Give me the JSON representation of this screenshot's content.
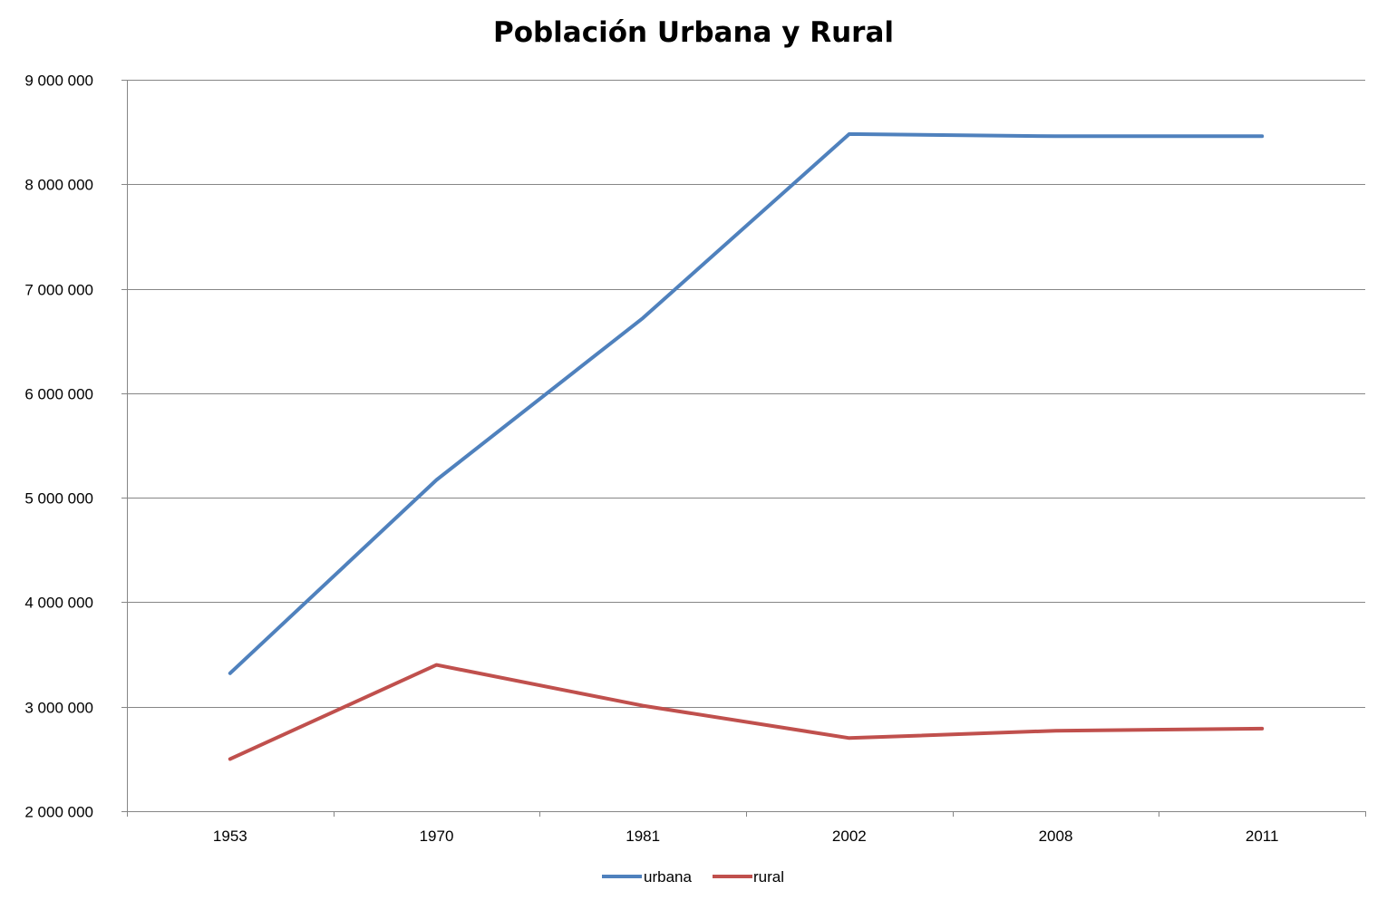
{
  "chart_data": {
    "type": "line",
    "title": "Población Urbana y Rural",
    "xlabel": "",
    "ylabel": "",
    "categories": [
      "1953",
      "1970",
      "1981",
      "2002",
      "2008",
      "2011"
    ],
    "ylim": [
      2000000,
      9000000
    ],
    "yticks": [
      2000000,
      3000000,
      4000000,
      5000000,
      6000000,
      7000000,
      8000000,
      9000000
    ],
    "ytick_labels": [
      "2 000 000",
      "3 000 000",
      "4 000 000",
      "5 000 000",
      "6 000 000",
      "7 000 000",
      "8 000 000",
      "9 000 000"
    ],
    "grid": true,
    "legend_position": "bottom",
    "series": [
      {
        "name": "urbana",
        "color": "#4F81BD",
        "values": [
          3320000,
          5170000,
          6720000,
          8480000,
          8460000,
          8460000
        ]
      },
      {
        "name": "rural",
        "color": "#C0504D",
        "values": [
          2500000,
          3400000,
          3010000,
          2700000,
          2770000,
          2790000
        ]
      }
    ]
  }
}
